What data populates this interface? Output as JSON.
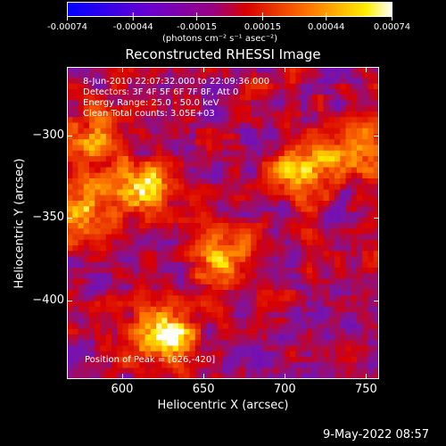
{
  "chart_data": {
    "type": "heatmap",
    "title": "Reconstructed RHESSI Image",
    "xlabel": "Heliocentric X (arcsec)",
    "ylabel": "Heliocentric Y (arcsec)",
    "xlim": [
      566,
      758
    ],
    "ylim": [
      -448,
      -258
    ],
    "x_ticks": [
      600,
      650,
      700,
      750
    ],
    "y_ticks": [
      -300,
      -350,
      -400
    ],
    "colorbar": {
      "ticks": [
        -0.00074,
        -0.00044,
        -0.00015,
        0.00015,
        0.00044,
        0.00074
      ],
      "tick_labels": [
        "-0.00074",
        "-0.00044",
        "-0.00015",
        "0.00015",
        "0.00044",
        "0.00074"
      ],
      "unit_label": "(photons cm⁻² s⁻¹ asec⁻²)",
      "colors": [
        "#0000ff",
        "#7700cc",
        "#cc0000",
        "#ff7700",
        "#ffffff"
      ]
    },
    "annotations": [
      "8-Jun-2010 22:07:32.000 to 22:09:36.000",
      "Detectors: 3F 4F 5F 6F 7F 8F, Att 0",
      "Energy Range: 25.0 - 50.0 keV",
      "Clean     Total counts: 3.05E+03"
    ],
    "peak_label": "Position of Peak = [626,-420]",
    "peak": [
      626,
      -420
    ],
    "bright_regions": [
      {
        "x": 626,
        "y": -420,
        "value": 0.00074
      },
      {
        "x": 612,
        "y": -330,
        "value": 0.0006
      },
      {
        "x": 575,
        "y": -345,
        "value": 0.00055
      },
      {
        "x": 710,
        "y": -320,
        "value": 0.0005
      },
      {
        "x": 745,
        "y": -310,
        "value": 0.00045
      },
      {
        "x": 660,
        "y": -375,
        "value": 0.00048
      },
      {
        "x": 580,
        "y": -300,
        "value": 0.0004
      }
    ]
  },
  "footer_date": "9-May-2022 08:57"
}
